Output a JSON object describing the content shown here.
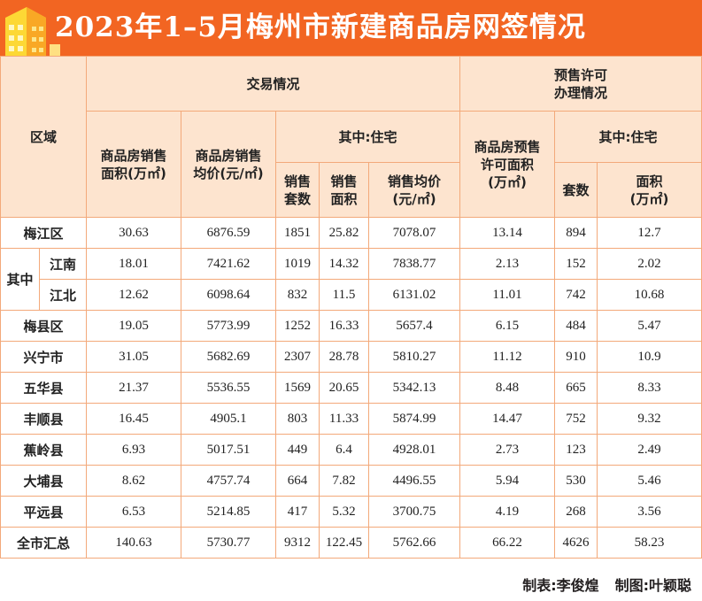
{
  "title": "2023年1–5月梅州市新建商品房网签情况",
  "headers": {
    "region": "区域",
    "trade": "交易情况",
    "presale": "预售许可\n办理情况",
    "area": "商品房销售\n面积(万㎡)",
    "avg_price": "商品房销售\n均价(元/㎡)",
    "residential_trade": "其中:住宅",
    "sales_count": "销售\n套数",
    "sales_area": "销售\n面积",
    "sales_avg": "销售均价\n(元/㎡)",
    "presale_area": "商品房预售\n许可面积\n(万㎡)",
    "residential_presale": "其中:住宅",
    "presale_count": "套数",
    "presale_res_area": "面积\n(万㎡)"
  },
  "qizhong_label": "其中",
  "rows": [
    {
      "region": "梅江区",
      "area": "30.63",
      "avg_price": "6876.59",
      "count": "1851",
      "res_area": "25.82",
      "res_avg": "7078.07",
      "presale_area": "13.14",
      "presale_count": "894",
      "presale_res_area": "12.7"
    },
    {
      "region": "江南",
      "area": "18.01",
      "avg_price": "7421.62",
      "count": "1019",
      "res_area": "14.32",
      "res_avg": "7838.77",
      "presale_area": "2.13",
      "presale_count": "152",
      "presale_res_area": "2.02"
    },
    {
      "region": "江北",
      "area": "12.62",
      "avg_price": "6098.64",
      "count": "832",
      "res_area": "11.5",
      "res_avg": "6131.02",
      "presale_area": "11.01",
      "presale_count": "742",
      "presale_res_area": "10.68"
    },
    {
      "region": "梅县区",
      "area": "19.05",
      "avg_price": "5773.99",
      "count": "1252",
      "res_area": "16.33",
      "res_avg": "5657.4",
      "presale_area": "6.15",
      "presale_count": "484",
      "presale_res_area": "5.47"
    },
    {
      "region": "兴宁市",
      "area": "31.05",
      "avg_price": "5682.69",
      "count": "2307",
      "res_area": "28.78",
      "res_avg": "5810.27",
      "presale_area": "11.12",
      "presale_count": "910",
      "presale_res_area": "10.9"
    },
    {
      "region": "五华县",
      "area": "21.37",
      "avg_price": "5536.55",
      "count": "1569",
      "res_area": "20.65",
      "res_avg": "5342.13",
      "presale_area": "8.48",
      "presale_count": "665",
      "presale_res_area": "8.33"
    },
    {
      "region": "丰顺县",
      "area": "16.45",
      "avg_price": "4905.1",
      "count": "803",
      "res_area": "11.33",
      "res_avg": "5874.99",
      "presale_area": "14.47",
      "presale_count": "752",
      "presale_res_area": "9.32"
    },
    {
      "region": "蕉岭县",
      "area": "6.93",
      "avg_price": "5017.51",
      "count": "449",
      "res_area": "6.4",
      "res_avg": "4928.01",
      "presale_area": "2.73",
      "presale_count": "123",
      "presale_res_area": "2.49"
    },
    {
      "region": "大埔县",
      "area": "8.62",
      "avg_price": "4757.74",
      "count": "664",
      "res_area": "7.82",
      "res_avg": "4496.55",
      "presale_area": "5.94",
      "presale_count": "530",
      "presale_res_area": "5.46"
    },
    {
      "region": "平远县",
      "area": "6.53",
      "avg_price": "5214.85",
      "count": "417",
      "res_area": "5.32",
      "res_avg": "3700.75",
      "presale_area": "4.19",
      "presale_count": "268",
      "presale_res_area": "3.56"
    },
    {
      "region": "全市汇总",
      "area": "140.63",
      "avg_price": "5730.77",
      "count": "9312",
      "res_area": "122.45",
      "res_avg": "5762.66",
      "presale_area": "66.22",
      "presale_count": "4626",
      "presale_res_area": "58.23"
    }
  ],
  "footer": {
    "table_by": "制表:李俊煌",
    "graphic_by": "制图:叶颖聪"
  },
  "colors": {
    "banner": "#f26522",
    "header_bg": "#fde4cf",
    "border": "#f3a97a"
  }
}
